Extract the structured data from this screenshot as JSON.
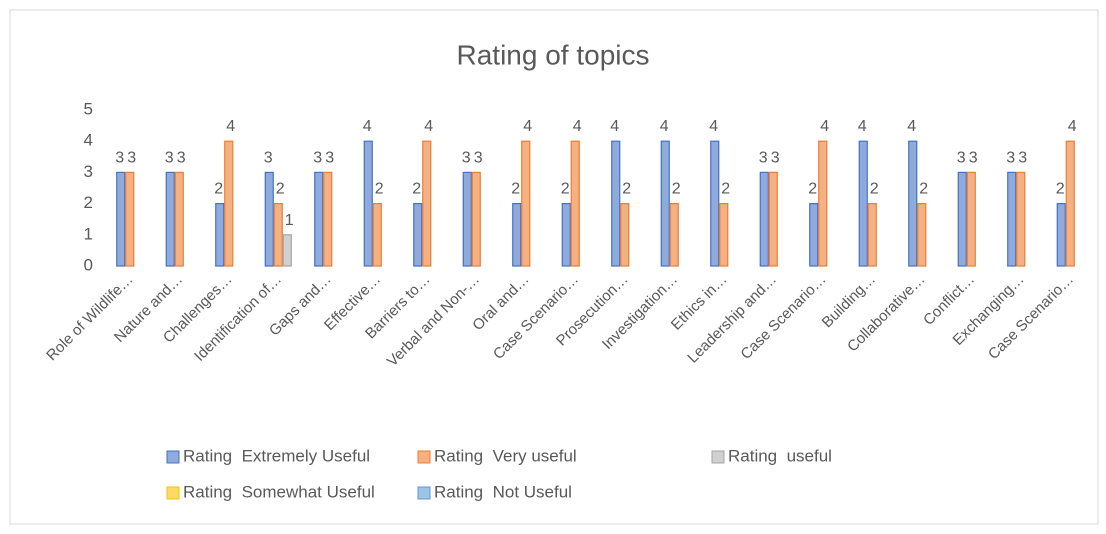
{
  "chart_data": {
    "type": "bar",
    "title": "Rating of topics",
    "categories": [
      "Role of Wildlife…",
      "Nature and…",
      "Challenges…",
      "Identification of…",
      "Gaps and…",
      "Effective…",
      "Barriers to…",
      "Verbal and Non-…",
      "Oral and…",
      "Case Scenario…",
      "Prosecution…",
      "Investigation…",
      "Ethics in…",
      "Leadership and…",
      "Case Scenario…",
      "Building…",
      "Collaborative…",
      "Conflict…",
      "Exchanging…",
      "Case Scenario…"
    ],
    "series": [
      {
        "name": "Rating  Extremely Useful",
        "color": "#4472c4",
        "fill": "#8faadc",
        "values": [
          3,
          3,
          2,
          3,
          3,
          4,
          2,
          3,
          2,
          2,
          4,
          4,
          4,
          3,
          2,
          4,
          4,
          3,
          3,
          2
        ]
      },
      {
        "name": "Rating  Very useful",
        "color": "#ed7d31",
        "fill": "#f4b183",
        "values": [
          3,
          3,
          4,
          2,
          3,
          2,
          4,
          3,
          4,
          4,
          2,
          2,
          2,
          3,
          4,
          2,
          2,
          3,
          3,
          4
        ]
      },
      {
        "name": "Rating  useful",
        "color": "#a5a5a5",
        "fill": "#d0d0d0",
        "values": [
          null,
          null,
          null,
          1,
          null,
          null,
          null,
          null,
          null,
          null,
          null,
          null,
          null,
          null,
          null,
          null,
          null,
          null,
          null,
          null
        ]
      },
      {
        "name": "Rating  Somewhat Useful",
        "color": "#ffc000",
        "fill": "#ffd966",
        "values": [
          null,
          null,
          null,
          null,
          null,
          null,
          null,
          null,
          null,
          null,
          null,
          null,
          null,
          null,
          null,
          null,
          null,
          null,
          null,
          null
        ]
      },
      {
        "name": "Rating  Not Useful",
        "color": "#5b9bd5",
        "fill": "#9dc3e6",
        "values": [
          null,
          null,
          null,
          null,
          null,
          null,
          null,
          null,
          null,
          null,
          null,
          null,
          null,
          null,
          null,
          null,
          null,
          null,
          null,
          null
        ]
      }
    ],
    "ylim": [
      0,
      5
    ],
    "yticks": [
      0,
      1,
      2,
      3,
      4,
      5
    ],
    "grid": false
  }
}
